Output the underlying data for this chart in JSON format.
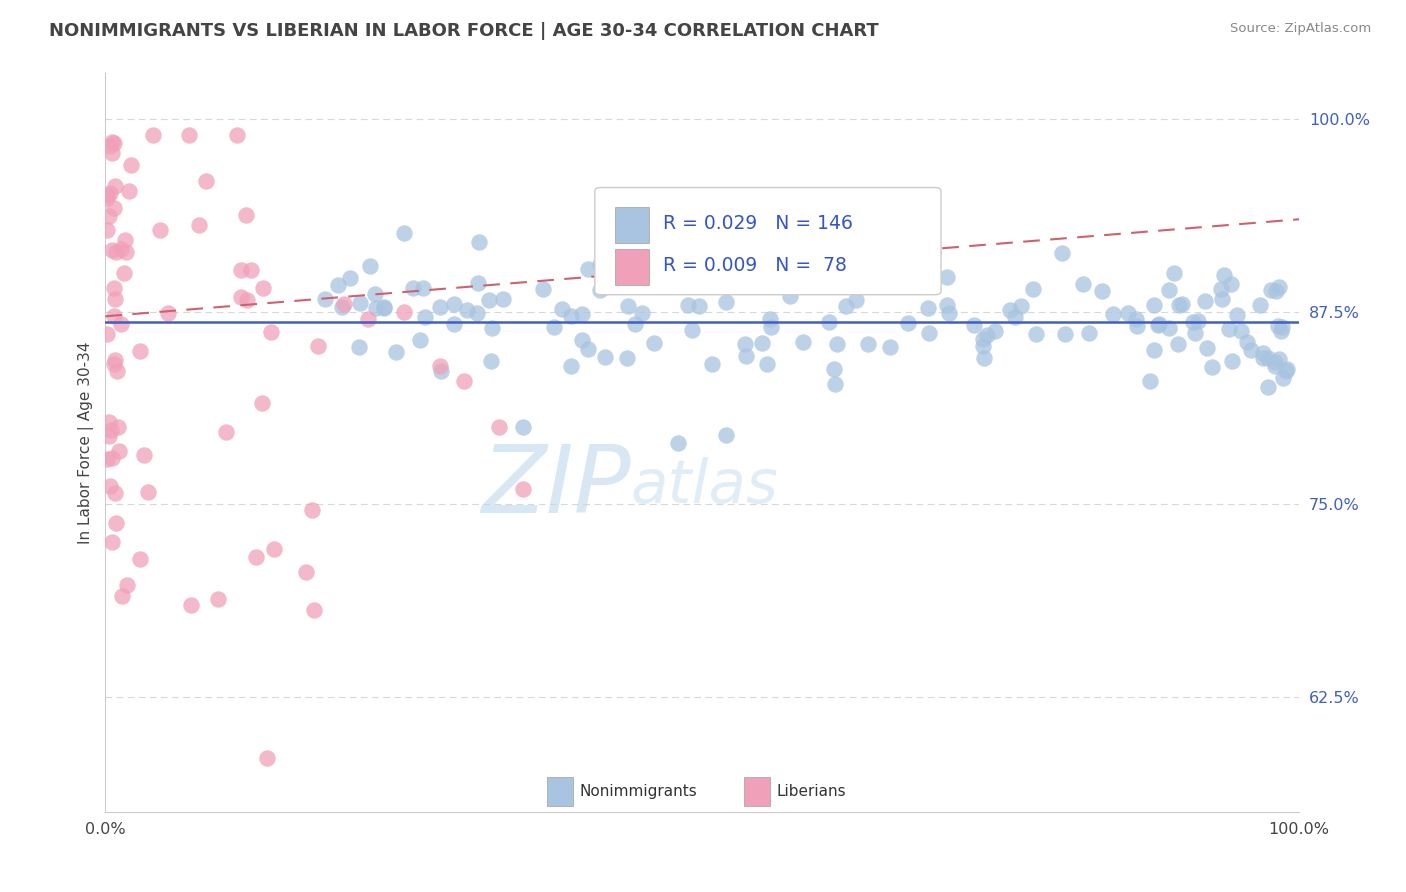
{
  "title": "NONIMMIGRANTS VS LIBERIAN IN LABOR FORCE | AGE 30-34 CORRELATION CHART",
  "source": "Source: ZipAtlas.com",
  "ylabel": "In Labor Force | Age 30-34",
  "xlim": [
    0.0,
    1.0
  ],
  "ylim": [
    0.55,
    1.03
  ],
  "yticks": [
    0.625,
    0.75,
    0.875,
    1.0
  ],
  "ytick_labels": [
    "62.5%",
    "75.0%",
    "87.5%",
    "100.0%"
  ],
  "xtick_labels": [
    "0.0%",
    "100.0%"
  ],
  "legend_r_blue": "0.029",
  "legend_n_blue": "146",
  "legend_r_pink": "0.009",
  "legend_n_pink": "78",
  "blue_dot_color": "#a8c4e0",
  "pink_dot_color": "#f0a0b8",
  "blue_line_color": "#4060c0",
  "pink_line_color": "#d06070",
  "tick_label_color": "#4060c0",
  "legend_text_color": "#3355cc",
  "title_color": "#444444",
  "source_color": "#888888",
  "grid_color": "#d8d8d8",
  "spine_color": "#cccccc",
  "watermark_zip_color": "#b8d4ec",
  "watermark_atlas_color": "#c8dff0",
  "bottom_legend_label1": "Nonimmigrants",
  "bottom_legend_label2": "Liberians",
  "blue_trend_y0": 0.868,
  "blue_trend_y1": 0.868,
  "pink_trend_y0": 0.872,
  "pink_trend_y1": 0.935
}
